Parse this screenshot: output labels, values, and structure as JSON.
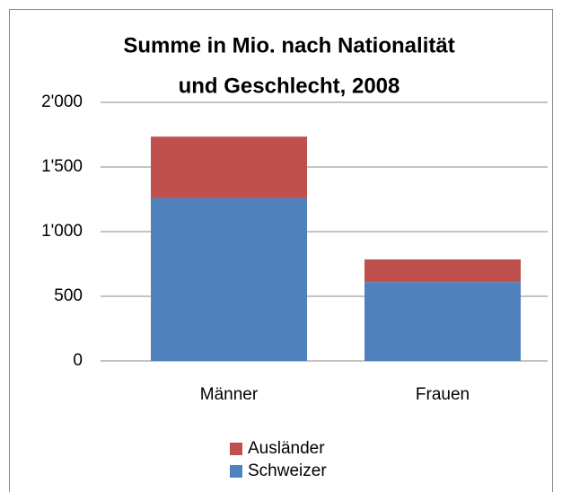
{
  "chart_data": {
    "type": "stacked_bar",
    "title": [
      "Summe in Mio. nach Nationalität",
      "und Geschlecht, 2008"
    ],
    "categories": [
      "Männer",
      "Frauen"
    ],
    "series": [
      {
        "name": "Schweizer",
        "color": "#4f81bd",
        "values": [
          1260,
          610
        ]
      },
      {
        "name": "Ausländer",
        "color": "#c0504d",
        "values": [
          475,
          175
        ]
      }
    ],
    "ylim": [
      0,
      2000
    ],
    "yticks": [
      0,
      500,
      {
        "value": 1000,
        "label": "1'000"
      },
      {
        "value": 1500,
        "label": "1'500"
      },
      {
        "value": 2000,
        "label": "2'000"
      }
    ],
    "grid": true,
    "legend": "bottom"
  }
}
